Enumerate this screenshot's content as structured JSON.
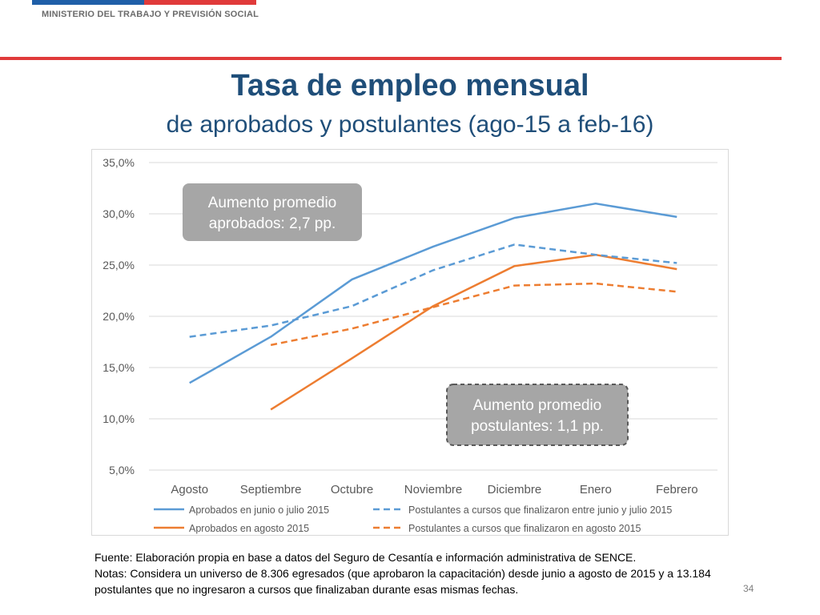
{
  "header": {
    "ministry": "MINISTERIO DEL TRABAJO Y PREVISIÓN SOCIAL"
  },
  "title": "Tasa de empleo mensual",
  "subtitle": "de aprobados y postulantes (ago-15 a feb-16)",
  "chart_data": {
    "type": "line",
    "categories": [
      "Agosto",
      "Septiembre",
      "Octubre",
      "Noviembre",
      "Diciembre",
      "Enero",
      "Febrero"
    ],
    "y_ticks": [
      "35,0%",
      "30,0%",
      "25,0%",
      "20,0%",
      "15,0%",
      "10,0%",
      "5,0%"
    ],
    "ylim": [
      5,
      35
    ],
    "grid": true,
    "legend_position": "bottom",
    "series": [
      {
        "name": "Aprobados en junio o julio 2015",
        "color": "#5b9bd5",
        "dashed": false,
        "values": [
          13.5,
          18.0,
          23.6,
          26.8,
          29.6,
          31.0,
          29.7
        ]
      },
      {
        "name": "Aprobados en agosto 2015",
        "color": "#ed7d31",
        "dashed": false,
        "values": [
          null,
          10.9,
          15.9,
          21.0,
          24.9,
          26.0,
          24.6
        ]
      },
      {
        "name": "Postulantes a cursos que finalizaron entre junio y julio 2015",
        "color": "#5b9bd5",
        "dashed": true,
        "values": [
          18.0,
          19.1,
          21.0,
          24.5,
          27.0,
          26.0,
          25.2
        ]
      },
      {
        "name": "Postulantes a cursos que finalizaron en agosto 2015",
        "color": "#ed7d31",
        "dashed": true,
        "values": [
          null,
          17.2,
          18.8,
          20.9,
          23.0,
          23.2,
          22.4
        ]
      }
    ],
    "annotations": [
      {
        "line1": "Aumento promedio",
        "line2": "aprobados: 2,7 pp.",
        "style": "solid"
      },
      {
        "line1": "Aumento promedio",
        "line2": "postulantes: 1,1 pp.",
        "style": "dashed"
      }
    ]
  },
  "footnote": {
    "line1": "Fuente: Elaboración propia en base a datos del Seguro de Cesantía e información administrativa de SENCE.",
    "line2": "Notas: Considera un universo de 8.306 egresados (que aprobaron la capacitación) desde junio a agosto de 2015 y a 13.184 postulantes que no ingresaron a cursos que finalizaban durante esas mismas fechas."
  },
  "page_number": "34"
}
